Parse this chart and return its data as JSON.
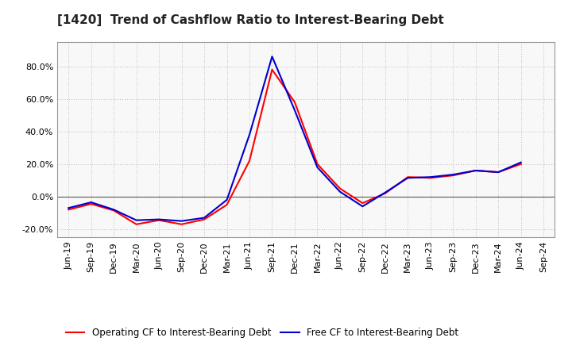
{
  "title": "[1420]  Trend of Cashflow Ratio to Interest-Bearing Debt",
  "labels": [
    "Jun-19",
    "Sep-19",
    "Dec-19",
    "Mar-20",
    "Jun-20",
    "Sep-20",
    "Dec-20",
    "Mar-21",
    "Jun-21",
    "Sep-21",
    "Dec-21",
    "Mar-22",
    "Jun-22",
    "Sep-22",
    "Dec-22",
    "Mar-23",
    "Jun-23",
    "Sep-23",
    "Dec-23",
    "Mar-24",
    "Jun-24",
    "Sep-24"
  ],
  "operating_cf": [
    -8.0,
    -4.5,
    -8.5,
    -17.0,
    -14.5,
    -17.0,
    -14.0,
    -5.0,
    22.0,
    78.0,
    58.0,
    20.0,
    5.0,
    -4.0,
    2.0,
    12.0,
    11.5,
    13.0,
    16.0,
    15.0,
    20.0,
    null
  ],
  "free_cf": [
    -7.0,
    -3.5,
    -8.0,
    -14.5,
    -14.0,
    -15.0,
    -13.0,
    -2.0,
    38.0,
    86.0,
    53.0,
    18.0,
    3.0,
    -6.0,
    2.5,
    11.5,
    12.0,
    13.5,
    16.0,
    15.0,
    21.0,
    null
  ],
  "ylim_min": -25.0,
  "ylim_max": 95.0,
  "yticks": [
    -20.0,
    0.0,
    20.0,
    40.0,
    60.0,
    80.0
  ],
  "operating_color": "#ff0000",
  "free_color": "#0000cc",
  "grid_color": "#bbbbbb",
  "background_color": "#ffffff",
  "plot_bg_color": "#f8f8f8",
  "legend_operating": "Operating CF to Interest-Bearing Debt",
  "legend_free": "Free CF to Interest-Bearing Debt",
  "title_color": "#222222",
  "title_fontsize": 11,
  "tick_fontsize": 8,
  "linewidth": 1.5
}
